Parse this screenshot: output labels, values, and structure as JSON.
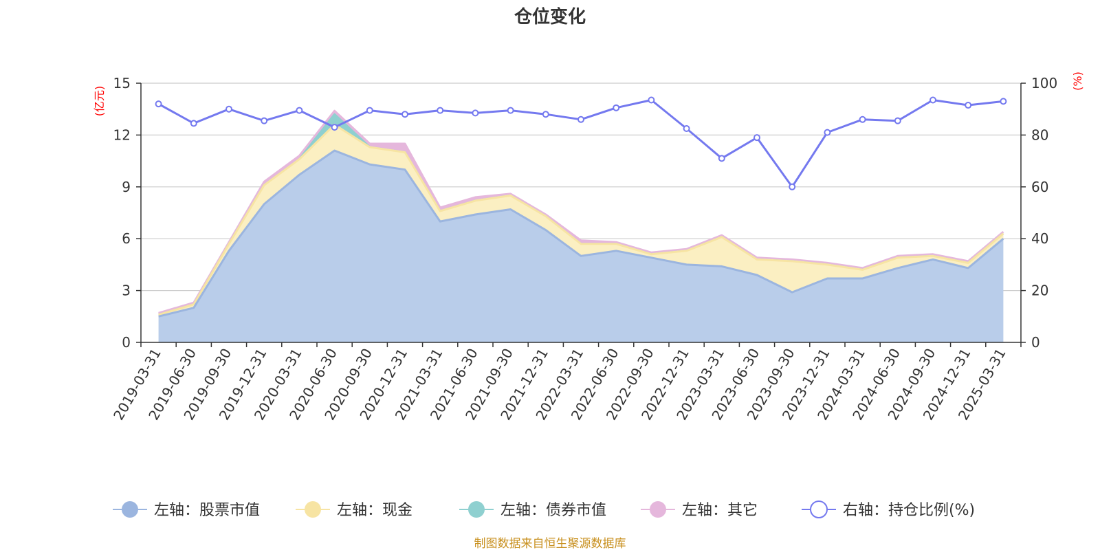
{
  "chart_data": {
    "type": "area",
    "title": "仓位变化",
    "source": "制图数据来自恒生聚源数据库",
    "left_axis": {
      "unit": "(亿元)",
      "min": 0,
      "max": 15,
      "ticks": [
        0,
        3,
        6,
        9,
        12,
        15
      ]
    },
    "right_axis": {
      "unit": "(%)",
      "min": 0,
      "max": 100,
      "ticks": [
        0,
        20,
        40,
        60,
        80,
        100
      ]
    },
    "categories": [
      "2019-03-31",
      "2019-06-30",
      "2019-09-30",
      "2019-12-31",
      "2020-03-31",
      "2020-06-30",
      "2020-09-30",
      "2020-12-31",
      "2021-03-31",
      "2021-06-30",
      "2021-09-30",
      "2021-12-31",
      "2022-03-31",
      "2022-06-30",
      "2022-09-30",
      "2022-12-31",
      "2023-03-31",
      "2023-06-30",
      "2023-09-30",
      "2023-12-31",
      "2024-03-31",
      "2024-06-30",
      "2024-09-30",
      "2024-12-31",
      "2025-03-31"
    ],
    "series": [
      {
        "name": "左轴：股票市值",
        "axis": "left",
        "color": "#9bb5df",
        "fill": "#b9cdea",
        "values": [
          1.5,
          2.0,
          5.3,
          8.0,
          9.7,
          11.1,
          10.3,
          10.0,
          7.0,
          7.4,
          7.7,
          6.5,
          5.0,
          5.3,
          4.9,
          4.5,
          4.4,
          3.9,
          2.9,
          3.7,
          3.7,
          4.3,
          4.8,
          4.3,
          6.0
        ]
      },
      {
        "name": "左轴：现金",
        "axis": "left",
        "color": "#f7e4a3",
        "fill": "#fbefc2",
        "values": [
          0.1,
          0.2,
          0.4,
          1.1,
          0.9,
          1.5,
          1.0,
          1.0,
          0.6,
          0.8,
          0.8,
          0.8,
          0.7,
          0.4,
          0.2,
          0.8,
          1.7,
          0.9,
          1.8,
          0.8,
          0.5,
          0.6,
          0.2,
          0.3,
          0.3
        ]
      },
      {
        "name": "左轴：债券市值",
        "axis": "left",
        "color": "#8fd0d0",
        "fill": "#8fd0d0",
        "values": [
          0,
          0,
          0,
          0,
          0,
          0.6,
          0,
          0,
          0,
          0,
          0,
          0,
          0,
          0,
          0,
          0,
          0,
          0,
          0,
          0,
          0,
          0,
          0,
          0,
          0
        ]
      },
      {
        "name": "左轴：其它",
        "axis": "left",
        "color": "#e5b7dc",
        "fill": "#e5b7dc",
        "values": [
          0.1,
          0.1,
          0.1,
          0.2,
          0.2,
          0.2,
          0.2,
          0.5,
          0.2,
          0.2,
          0.1,
          0.1,
          0.2,
          0.1,
          0.1,
          0.1,
          0.1,
          0.1,
          0.1,
          0.1,
          0.1,
          0.1,
          0.1,
          0.1,
          0.1
        ]
      },
      {
        "name": "右轴：持仓比例(%)",
        "axis": "right",
        "color": "#7479ef",
        "values": [
          92,
          84.5,
          90,
          85.5,
          89.5,
          83,
          89.5,
          88,
          89.5,
          88.5,
          89.5,
          88,
          86,
          90.5,
          93.5,
          82.5,
          71,
          79,
          60,
          81,
          86,
          85.5,
          93.5,
          91.5,
          93
        ]
      }
    ]
  }
}
